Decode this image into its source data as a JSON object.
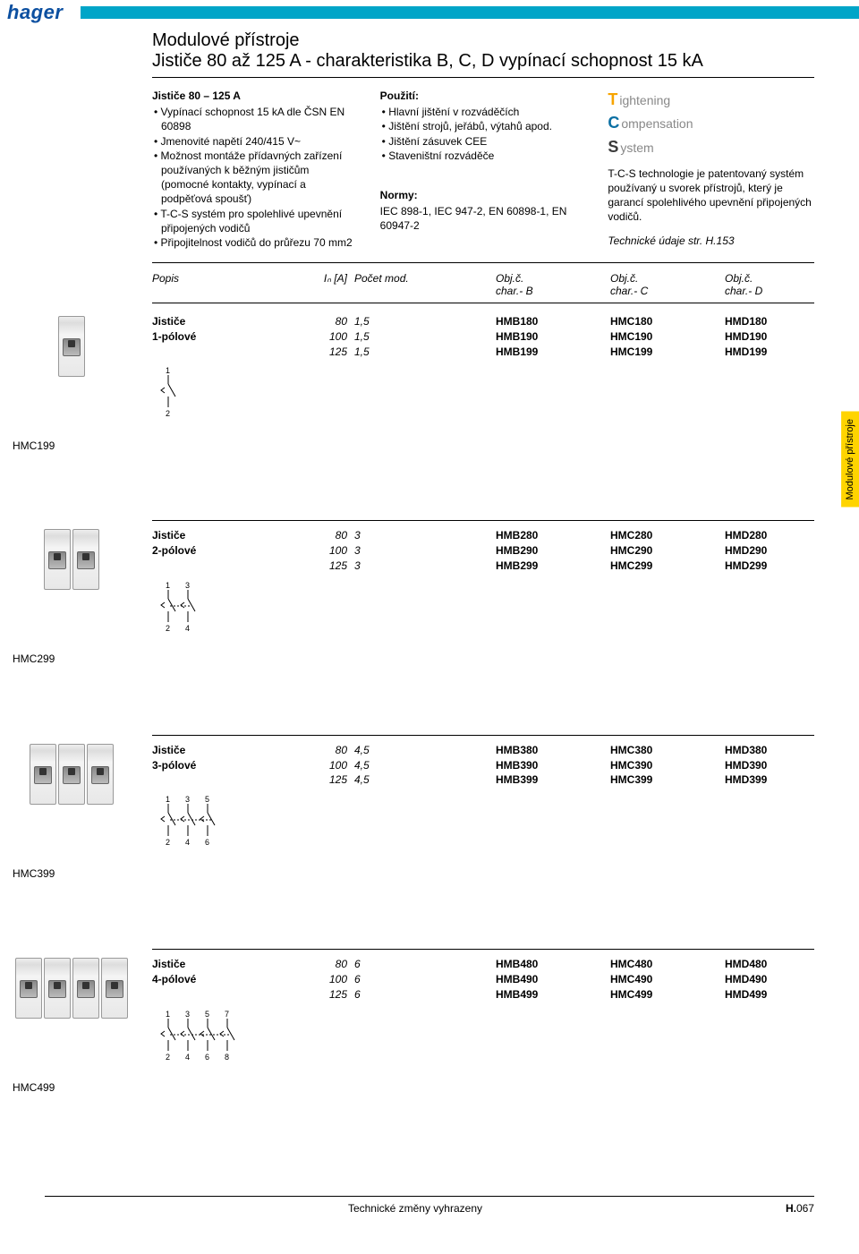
{
  "brand": "hager",
  "title1": "Modulové přístroje",
  "title2": "Jističe 80 až 125 A - charakteristika B, C, D vypínací schopnost 15 kA",
  "intro": {
    "col1": {
      "header": "Jističe 80 – 125 A",
      "items": [
        "Vypínací schopnost 15 kA dle ČSN EN 60898",
        "Jmenovité napětí 240/415 V~",
        "Možnost montáže přídavných zařízení používaných k běžným jističům (pomocné kontakty, vypínací a podpěťová spoušť)",
        "T-C-S systém pro spolehlivé upevnění připojených vodičů",
        "Připojitelnost vodičů do průřezu 70 mm2"
      ]
    },
    "col2": {
      "header": "Použití:",
      "items": [
        "Hlavní jištění v rozváděčích",
        "Jištění strojů, jeřábů, výtahů apod.",
        "Jištění zásuvek CEE",
        "Staveništní rozváděče"
      ],
      "norms_header": "Normy:",
      "norms_text": "IEC 898-1, IEC 947-2, EN 60898-1, EN 60947-2"
    },
    "col3": {
      "tcs": {
        "t": "T",
        "t_word": "ightening",
        "c": "C",
        "c_word": "ompensation",
        "s": "S",
        "s_word": "ystem"
      },
      "text": "T-C-S technologie je patentovaný systém používaný u svorek přístrojů, který je garancí spolehlivého upevnění připojených vodičů.",
      "tech_ref": "Technické údaje str. H.153"
    }
  },
  "colors": {
    "brand_blue": "#0b4fa0",
    "cyan": "#00a5c8",
    "tab_yellow": "#ffd400",
    "tcs_orange": "#f7a400",
    "tcs_blue": "#0b6fa3",
    "tcs_grey": "#3a3a3a"
  },
  "table_headers": {
    "popis": "Popis",
    "in": "Iₙ [A]",
    "mod": "Počet mod.",
    "b": "Obj.č.",
    "b_sub": "char.- B",
    "c": "Obj.č.",
    "c_sub": "char.- C",
    "d": "Obj.č.",
    "d_sub": "char.- D"
  },
  "sections": [
    {
      "name": "Jističe",
      "sub": "1-pólové",
      "poles": 1,
      "caption": "HMC199",
      "rows": [
        {
          "in": "80",
          "mod": "1,5",
          "b": "HMB180",
          "c": "HMC180",
          "d": "HMD180"
        },
        {
          "in": "100",
          "mod": "1,5",
          "b": "HMB190",
          "c": "HMC190",
          "d": "HMD190"
        },
        {
          "in": "125",
          "mod": "1,5",
          "b": "HMB199",
          "c": "HMC199",
          "d": "HMD199"
        }
      ]
    },
    {
      "name": "Jističe",
      "sub": "2-pólové",
      "poles": 2,
      "caption": "HMC299",
      "rows": [
        {
          "in": "80",
          "mod": "3",
          "b": "HMB280",
          "c": "HMC280",
          "d": "HMD280"
        },
        {
          "in": "100",
          "mod": "3",
          "b": "HMB290",
          "c": "HMC290",
          "d": "HMD290"
        },
        {
          "in": "125",
          "mod": "3",
          "b": "HMB299",
          "c": "HMC299",
          "d": "HMD299"
        }
      ]
    },
    {
      "name": "Jističe",
      "sub": "3-pólové",
      "poles": 3,
      "caption": "HMC399",
      "rows": [
        {
          "in": "80",
          "mod": "4,5",
          "b": "HMB380",
          "c": "HMC380",
          "d": "HMD380"
        },
        {
          "in": "100",
          "mod": "4,5",
          "b": "HMB390",
          "c": "HMC390",
          "d": "HMD390"
        },
        {
          "in": "125",
          "mod": "4,5",
          "b": "HMB399",
          "c": "HMC399",
          "d": "HMD399"
        }
      ]
    },
    {
      "name": "Jističe",
      "sub": "4-pólové",
      "poles": 4,
      "caption": "HMC499",
      "rows": [
        {
          "in": "80",
          "mod": "6",
          "b": "HMB480",
          "c": "HMC480",
          "d": "HMD480"
        },
        {
          "in": "100",
          "mod": "6",
          "b": "HMB490",
          "c": "HMC490",
          "d": "HMD490"
        },
        {
          "in": "125",
          "mod": "6",
          "b": "HMB499",
          "c": "HMC499",
          "d": "HMD499"
        }
      ]
    }
  ],
  "side_tab": "Modulové přístroje",
  "footer": {
    "left": "Technické změny vyhrazeny",
    "right_prefix": "H.",
    "right_num": "067"
  }
}
